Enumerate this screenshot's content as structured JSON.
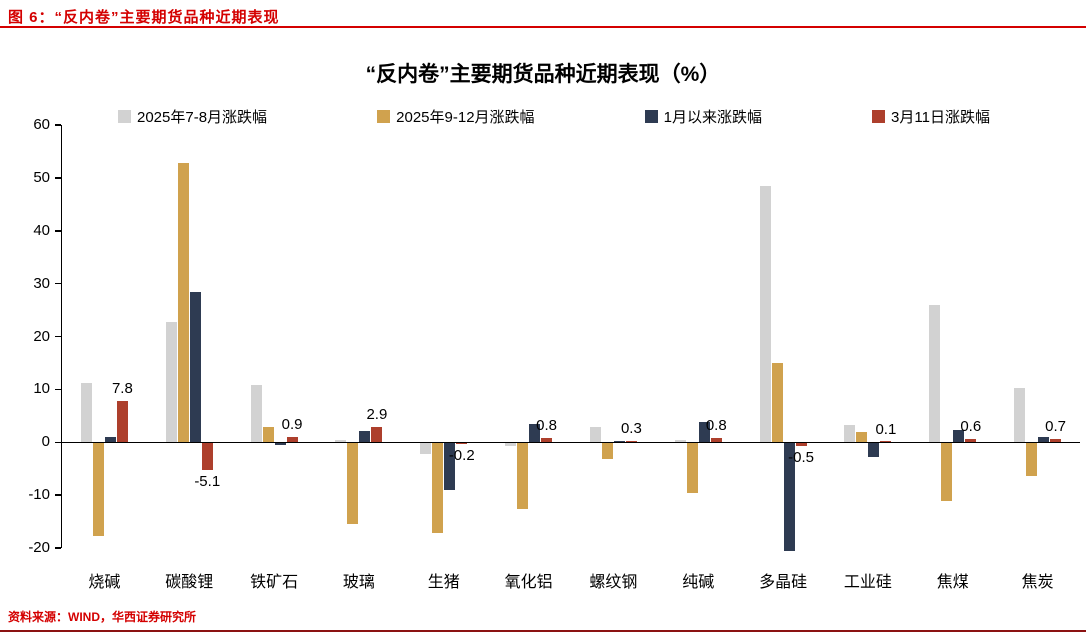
{
  "header": {
    "title": "图 6：“反内卷”主要期货品种近期表现"
  },
  "footer": {
    "source": "资料来源：WIND，华西证券研究所"
  },
  "accent_colors": {
    "header_red": "#d40000",
    "bottom_rule": "#8b1212"
  },
  "chart_data": {
    "type": "bar",
    "title": "“反内卷”主要期货品种近期表现（%）",
    "xlabel": "",
    "ylabel": "",
    "ylim": [
      -20,
      60
    ],
    "yticks": [
      60,
      50,
      40,
      30,
      20,
      10,
      0,
      -10,
      -20
    ],
    "grid": false,
    "legend_position": "top",
    "categories": [
      "烧碱",
      "碳酸锂",
      "铁矿石",
      "玻璃",
      "生猪",
      "氧化铝",
      "螺纹钢",
      "纯碱",
      "多晶硅",
      "工业硅",
      "焦煤",
      "焦炭"
    ],
    "series": [
      {
        "name": "2025年7-8月涨跌幅",
        "color": "#d2d2d2",
        "values": [
          11.3,
          22.8,
          10.8,
          0.4,
          -2.0,
          -0.5,
          2.9,
          0.4,
          48.4,
          3.2,
          26.0,
          10.2
        ]
      },
      {
        "name": "2025年9-12月涨跌幅",
        "color": "#d0a24e",
        "values": [
          -17.6,
          52.9,
          2.8,
          -15.2,
          -16.9,
          -12.5,
          -3.0,
          -9.5,
          15.0,
          1.9,
          -11.0,
          -6.2
        ]
      },
      {
        "name": "1月以来涨跌幅",
        "color": "#2e3b52",
        "values": [
          1.0,
          28.5,
          -0.4,
          2.2,
          -8.8,
          3.5,
          0.2,
          3.9,
          -20.3,
          -2.6,
          2.4,
          1.0
        ]
      },
      {
        "name": "3月11日涨跌幅",
        "color": "#ad3f2c",
        "values": [
          7.8,
          -5.1,
          0.9,
          2.9,
          -0.2,
          0.8,
          0.3,
          0.8,
          -0.5,
          0.1,
          0.6,
          0.7
        ],
        "labels": [
          "7.8",
          "-5.1",
          "0.9",
          "2.9",
          "-0.2",
          "0.8",
          "0.3",
          "0.8",
          "-0.5",
          "0.1",
          "0.6",
          "0.7"
        ]
      }
    ]
  }
}
